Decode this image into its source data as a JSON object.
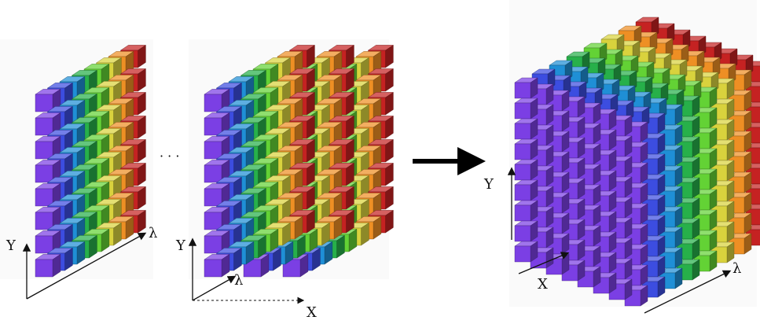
{
  "labels": {
    "left_y": "Y",
    "left_lambda": "λ",
    "ellipsis": "· · ·",
    "middle_y": "Y",
    "middle_lambda": "λ",
    "middle_x": "X",
    "right_y": "Y",
    "right_x": "X",
    "right_lambda": "λ"
  },
  "spectral_colors": [
    "#7b3fe4",
    "#3c4de0",
    "#1f8fd6",
    "#27b04a",
    "#63d235",
    "#d9d23d",
    "#ee8f24",
    "#c52222"
  ]
}
